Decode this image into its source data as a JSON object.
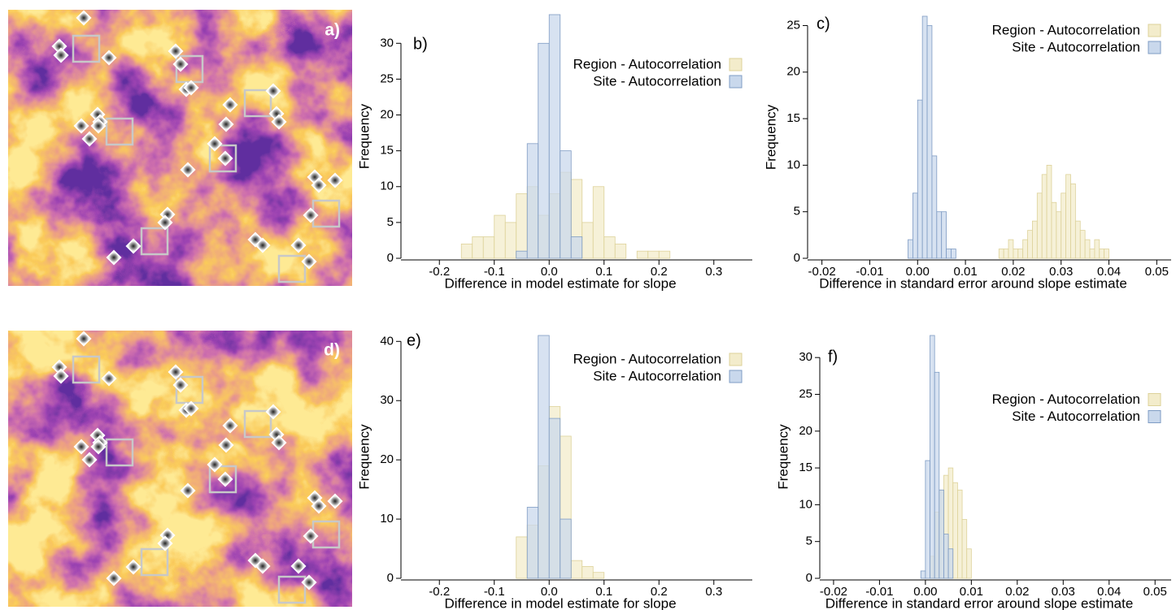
{
  "maps": [
    {
      "label": "a)"
    },
    {
      "label": "d)"
    }
  ],
  "chart_data": [
    {
      "type": "histogram",
      "panel_label": "b)",
      "xlabel": "Difference in model estimate for slope",
      "ylabel": "Frequency",
      "xlim": [
        -0.27,
        0.37
      ],
      "ylim": [
        0,
        34
      ],
      "xticks": [
        -0.2,
        -0.1,
        {
          "value": 0,
          "label": "0.0"
        },
        0.1,
        0.2,
        0.3
      ],
      "yticks": [
        0,
        5,
        10,
        15,
        20,
        25,
        30
      ],
      "legend": "upper right",
      "series": [
        {
          "name": "Region - Autocorrelation",
          "color": "#f3eccb",
          "edge_color": "#ddd29a",
          "bins": [
            -0.16,
            -0.14,
            -0.12,
            -0.1,
            -0.08,
            -0.06,
            -0.04,
            -0.02,
            0,
            0.02,
            0.04,
            0.06,
            0.08,
            0.1,
            0.12,
            0.14,
            0.16,
            0.18,
            0.2,
            0.22
          ],
          "values": [
            2,
            3,
            3,
            6,
            5,
            9,
            10,
            6,
            9,
            12,
            11,
            5,
            10,
            3,
            2,
            0,
            1,
            1,
            1
          ]
        },
        {
          "name": "Site - Autocorrelation",
          "color": "#c9d8ec",
          "edge_color": "#7f9cc4",
          "bins": [
            -0.06,
            -0.04,
            -0.02,
            0,
            0.02,
            0.04,
            0.06
          ],
          "values": [
            1,
            16,
            30,
            34,
            15,
            3
          ]
        }
      ]
    },
    {
      "type": "histogram",
      "panel_label": "c)",
      "xlabel": "Difference in standard error around slope estimate",
      "ylabel": "Frequency",
      "xlim": [
        -0.023,
        0.053
      ],
      "ylim": [
        0,
        26
      ],
      "xticks": [
        -0.02,
        -0.01,
        {
          "value": 0,
          "label": "0.00"
        },
        0.01,
        0.02,
        0.03,
        0.04,
        0.05
      ],
      "yticks": [
        0,
        5,
        10,
        15,
        20,
        25
      ],
      "legend": "upper right",
      "series": [
        {
          "name": "Region - Autocorrelation",
          "color": "#f3eccb",
          "edge_color": "#ddd29a",
          "bins": [
            0.017,
            0.018,
            0.019,
            0.02,
            0.021,
            0.022,
            0.023,
            0.024,
            0.025,
            0.026,
            0.027,
            0.028,
            0.029,
            0.03,
            0.031,
            0.032,
            0.033,
            0.034,
            0.035,
            0.036,
            0.037,
            0.038,
            0.039,
            0.04
          ],
          "values": [
            1,
            1,
            2,
            1,
            1,
            2,
            3,
            4,
            7,
            9,
            10,
            6,
            5,
            7,
            9,
            8,
            4,
            3,
            2,
            1,
            2,
            1,
            1
          ]
        },
        {
          "name": "Site - Autocorrelation",
          "color": "#c9d8ec",
          "edge_color": "#7f9cc4",
          "bins": [
            -0.002,
            -0.001,
            0,
            0.001,
            0.002,
            0.003,
            0.004,
            0.005,
            0.006,
            0.007,
            0.008
          ],
          "values": [
            2,
            7,
            17,
            26,
            25,
            11,
            5,
            5,
            1,
            1
          ]
        }
      ]
    },
    {
      "type": "histogram",
      "panel_label": "e)",
      "xlabel": "Difference in model estimate for slope",
      "ylabel": "Frequency",
      "xlim": [
        -0.27,
        0.37
      ],
      "ylim": [
        0,
        41
      ],
      "xticks": [
        -0.2,
        -0.1,
        {
          "value": 0,
          "label": "0.0"
        },
        0.1,
        0.2,
        0.3
      ],
      "yticks": [
        0,
        10,
        20,
        30,
        40
      ],
      "legend": "upper right",
      "series": [
        {
          "name": "Region - Autocorrelation",
          "color": "#f3eccb",
          "edge_color": "#ddd29a",
          "bins": [
            -0.06,
            -0.04,
            -0.02,
            0,
            0.02,
            0.04,
            0.06,
            0.08,
            0.1
          ],
          "values": [
            7,
            9,
            19,
            29,
            24,
            3,
            2,
            1
          ]
        },
        {
          "name": "Site - Autocorrelation",
          "color": "#c9d8ec",
          "edge_color": "#7f9cc4",
          "bins": [
            -0.04,
            -0.02,
            0,
            0.02,
            0.04
          ],
          "values": [
            12,
            41,
            27,
            10
          ]
        }
      ]
    },
    {
      "type": "histogram",
      "panel_label": "f)",
      "xlabel": "Difference in standard error around slope estimate",
      "ylabel": "Frequency",
      "xlim": [
        -0.023,
        0.0535
      ],
      "ylim": [
        0,
        33
      ],
      "xticks": [
        -0.02,
        -0.01,
        {
          "value": 0,
          "label": "0.00"
        },
        0.01,
        0.02,
        0.03,
        0.04,
        0.05
      ],
      "yticks": [
        0,
        5,
        10,
        15,
        20,
        25,
        30
      ],
      "legend": "center right",
      "series": [
        {
          "name": "Region - Autocorrelation",
          "color": "#f3eccb",
          "edge_color": "#ddd29a",
          "bins": [
            0.001,
            0.002,
            0.003,
            0.004,
            0.005,
            0.006,
            0.007,
            0.008,
            0.009,
            0.01
          ],
          "values": [
            3,
            9,
            12,
            14,
            15,
            13,
            12,
            8,
            4
          ]
        },
        {
          "name": "Site - Autocorrelation",
          "color": "#c9d8ec",
          "edge_color": "#7f9cc4",
          "bins": [
            -0.001,
            0,
            0.001,
            0.002,
            0.003,
            0.004,
            0.005,
            0.006
          ],
          "values": [
            1,
            16,
            33,
            28,
            12,
            6,
            4
          ]
        }
      ]
    }
  ]
}
